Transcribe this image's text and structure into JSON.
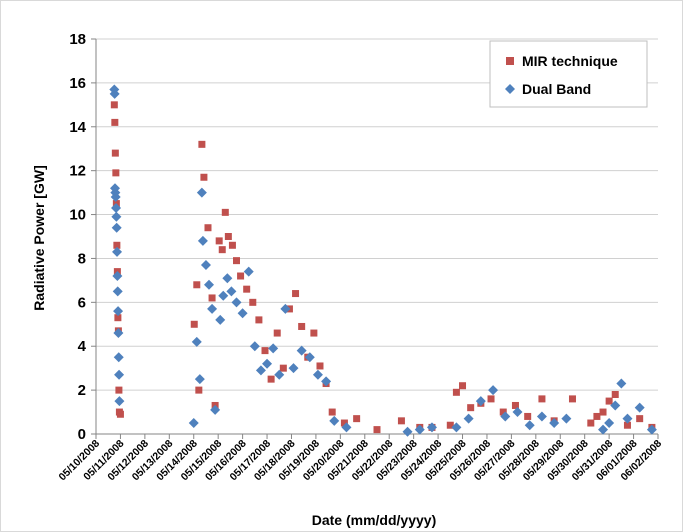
{
  "chart_data": {
    "type": "scatter",
    "xlabel": "Date (mm/dd/yyyy)",
    "ylabel": "Radiative Power [GW]",
    "ylim": [
      0,
      18
    ],
    "y_ticks": [
      "0",
      "2",
      "4",
      "6",
      "8",
      "10",
      "12",
      "14",
      "16",
      "18"
    ],
    "x_ticks": [
      "05/10/2008",
      "05/11/2008",
      "05/12/2008",
      "05/13/2008",
      "05/14/2008",
      "05/15/2008",
      "05/16/2008",
      "05/17/2008",
      "05/18/2008",
      "05/19/2008",
      "05/20/2008",
      "05/21/2008",
      "05/22/2008",
      "05/23/2008",
      "05/24/2008",
      "05/25/2008",
      "05/26/2008",
      "05/27/2008",
      "05/28/2008",
      "05/29/2008",
      "05/30/2008",
      "05/31/2008",
      "06/01/2008",
      "06/02/2008"
    ],
    "xlim": [
      "05/10/2008",
      "06/02/2008"
    ],
    "grid": "horizontal",
    "legend_position": "top-right",
    "series": [
      {
        "name": "MIR technique",
        "color": "#c0504d",
        "marker": "square",
        "x": [
          "05/10/2008 18:00",
          "05/10/2008 18:30",
          "05/10/2008 19:00",
          "05/10/2008 19:30",
          "05/10/2008 20:00",
          "05/10/2008 20:30",
          "05/10/2008 21:00",
          "05/10/2008 21:30",
          "05/10/2008 22:00",
          "05/10/2008 22:30",
          "05/10/2008 23:00",
          "05/11/2008 00:00",
          "05/14/2008 00:30",
          "05/14/2008 03:00",
          "05/14/2008 05:00",
          "05/14/2008 08:00",
          "05/14/2008 10:00",
          "05/14/2008 14:00",
          "05/14/2008 18:00",
          "05/14/2008 21:00",
          "05/15/2008 01:00",
          "05/15/2008 04:00",
          "05/15/2008 07:00",
          "05/15/2008 10:00",
          "05/15/2008 14:00",
          "05/15/2008 18:00",
          "05/15/2008 22:00",
          "05/16/2008 04:00",
          "05/16/2008 10:00",
          "05/16/2008 16:00",
          "05/16/2008 22:00",
          "05/17/2008 04:00",
          "05/17/2008 10:00",
          "05/17/2008 16:00",
          "05/17/2008 22:00",
          "05/18/2008 04:00",
          "05/18/2008 10:00",
          "05/18/2008 16:00",
          "05/18/2008 22:00",
          "05/19/2008 04:00",
          "05/19/2008 10:00",
          "05/19/2008 16:00",
          "05/20/2008 04:00",
          "05/20/2008 16:00",
          "05/21/2008 12:00",
          "05/22/2008 12:00",
          "05/23/2008 06:00",
          "05/23/2008 18:00",
          "05/24/2008 12:00",
          "05/24/2008 18:00",
          "05/25/2008 00:00",
          "05/25/2008 08:00",
          "05/25/2008 18:00",
          "05/26/2008 04:00",
          "05/26/2008 16:00",
          "05/27/2008 04:00",
          "05/27/2008 16:00",
          "05/28/2008 06:00",
          "05/28/2008 18:00",
          "05/29/2008 12:00",
          "05/30/2008 06:00",
          "05/30/2008 12:00",
          "05/30/2008 18:00",
          "05/31/2008 00:00",
          "05/31/2008 06:00",
          "05/31/2008 18:00",
          "06/01/2008 06:00",
          "06/01/2008 18:00"
        ],
        "y": [
          15.0,
          14.2,
          12.8,
          11.9,
          10.5,
          8.6,
          7.4,
          5.3,
          4.7,
          2.0,
          1.0,
          0.9,
          5.0,
          6.8,
          2.0,
          13.2,
          11.7,
          9.4,
          6.2,
          1.3,
          8.8,
          8.4,
          10.1,
          9.0,
          8.6,
          7.9,
          7.2,
          6.6,
          6.0,
          5.2,
          3.8,
          2.5,
          4.6,
          3.0,
          5.7,
          6.4,
          4.9,
          3.5,
          4.6,
          3.1,
          2.3,
          1.0,
          0.5,
          0.7,
          0.2,
          0.6,
          0.3,
          0.3,
          0.4,
          1.9,
          2.2,
          1.2,
          1.4,
          1.6,
          1.0,
          1.3,
          0.8,
          1.6,
          0.6,
          1.6,
          0.5,
          0.8,
          1.0,
          1.5,
          1.8,
          0.4,
          0.7,
          0.3
        ]
      },
      {
        "name": "Dual Band",
        "color": "#4f81bd",
        "marker": "diamond",
        "x": [
          "05/10/2008 18:00",
          "05/10/2008 18:20",
          "05/10/2008 18:40",
          "05/10/2008 19:00",
          "05/10/2008 19:20",
          "05/10/2008 19:40",
          "05/10/2008 20:00",
          "05/10/2008 20:20",
          "05/10/2008 20:40",
          "05/10/2008 21:00",
          "05/10/2008 21:20",
          "05/10/2008 21:40",
          "05/10/2008 22:00",
          "05/10/2008 22:20",
          "05/10/2008 22:40",
          "05/10/2008 23:00",
          "05/14/2008 00:00",
          "05/14/2008 03:00",
          "05/14/2008 06:00",
          "05/14/2008 08:00",
          "05/14/2008 09:00",
          "05/14/2008 12:00",
          "05/14/2008 15:00",
          "05/14/2008 18:00",
          "05/14/2008 21:00",
          "05/15/2008 02:00",
          "05/15/2008 05:00",
          "05/15/2008 09:00",
          "05/15/2008 13:00",
          "05/15/2008 18:00",
          "05/16/2008 00:00",
          "05/16/2008 06:00",
          "05/16/2008 12:00",
          "05/16/2008 18:00",
          "05/17/2008 00:00",
          "05/17/2008 06:00",
          "05/17/2008 12:00",
          "05/17/2008 18:00",
          "05/18/2008 02:00",
          "05/18/2008 10:00",
          "05/18/2008 18:00",
          "05/19/2008 02:00",
          "05/19/2008 10:00",
          "05/19/2008 18:00",
          "05/20/2008 06:00",
          "05/22/2008 18:00",
          "05/23/2008 06:00",
          "05/23/2008 18:00",
          "05/24/2008 18:00",
          "05/25/2008 06:00",
          "05/25/2008 18:00",
          "05/26/2008 06:00",
          "05/26/2008 18:00",
          "05/27/2008 06:00",
          "05/27/2008 18:00",
          "05/28/2008 06:00",
          "05/28/2008 18:00",
          "05/29/2008 06:00",
          "05/30/2008 18:00",
          "05/31/2008 00:00",
          "05/31/2008 06:00",
          "05/31/2008 12:00",
          "05/31/2008 18:00",
          "06/01/2008 06:00",
          "06/01/2008 18:00"
        ],
        "y": [
          15.7,
          15.5,
          11.2,
          11.0,
          10.8,
          10.3,
          9.9,
          9.4,
          8.3,
          7.2,
          6.5,
          5.6,
          4.6,
          3.5,
          2.7,
          1.5,
          0.5,
          4.2,
          2.5,
          11.0,
          8.8,
          7.7,
          6.8,
          5.7,
          1.1,
          5.2,
          6.3,
          7.1,
          6.5,
          6.0,
          5.5,
          7.4,
          4.0,
          2.9,
          3.2,
          3.9,
          2.7,
          5.7,
          3.0,
          3.8,
          3.5,
          2.7,
          2.4,
          0.6,
          0.3,
          0.1,
          0.2,
          0.3,
          0.3,
          0.7,
          1.5,
          2.0,
          0.8,
          1.0,
          0.4,
          0.8,
          0.5,
          0.7,
          0.2,
          0.5,
          1.3,
          2.3,
          0.7,
          1.2,
          0.2
        ]
      }
    ]
  }
}
